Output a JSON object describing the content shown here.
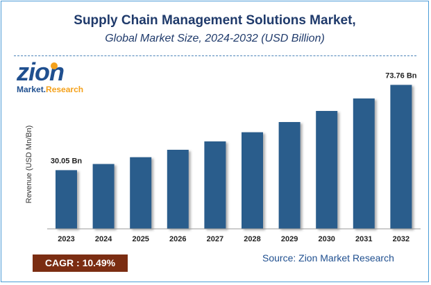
{
  "title": "Supply Chain Management Solutions Market,",
  "subtitle": "Global Market Size, 2024-2032 (USD Billion)",
  "logo": {
    "main": "zion",
    "sub_left": "Market.",
    "sub_right": "Research"
  },
  "cagr": "CAGR : 10.49%",
  "source": "Source: Zion Market Research",
  "colors": {
    "bar": "#2b5d8c",
    "title": "#1f3a6b",
    "cagr_bg": "#7b2d12",
    "logo_accent": "#f4a11b"
  },
  "chart_data": {
    "type": "bar",
    "categories": [
      "2023",
      "2024",
      "2025",
      "2026",
      "2027",
      "2028",
      "2029",
      "2030",
      "2031",
      "2032"
    ],
    "values": [
      30.05,
      33.2,
      36.7,
      40.5,
      44.8,
      49.5,
      54.7,
      60.4,
      66.8,
      73.76
    ],
    "data_labels": [
      {
        "index": 0,
        "text": "30.05 Bn"
      },
      {
        "index": 9,
        "text": "73.76 Bn"
      }
    ],
    "ylabel": "Revenue (USD Mn/Bn)",
    "xlabel": "",
    "ylim": [
      0,
      81
    ],
    "grid": false,
    "legend": "none"
  }
}
